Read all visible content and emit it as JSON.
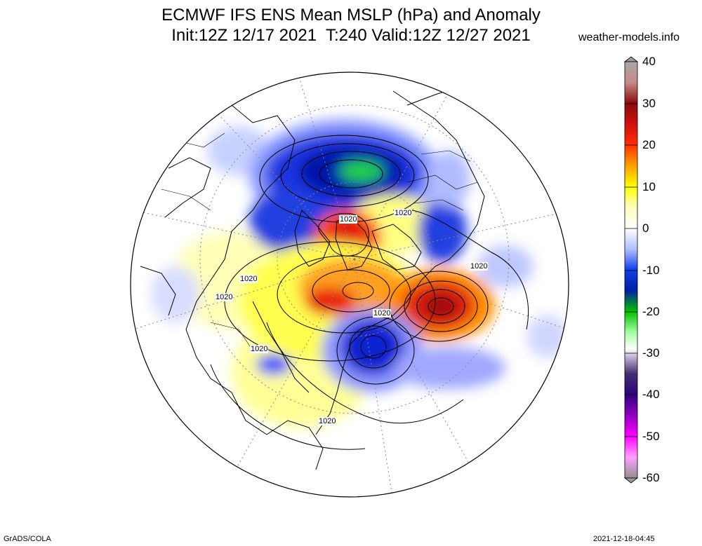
{
  "title": {
    "line1": "ECMWF IFS ENS Mean MSLP (hPa) and Anomaly",
    "line2": "Init:12Z 12/17 2021  T:240 Valid:12Z 12/27 2021"
  },
  "source": "weather-models.info",
  "colorbar": {
    "ticks": [
      "40",
      "30",
      "20",
      "10",
      "0",
      "-10",
      "-20",
      "-30",
      "-40",
      "-50",
      "-60"
    ],
    "end_color": "#9a9a9a",
    "stops": [
      {
        "value": 40,
        "color": "#a8a8a8"
      },
      {
        "value": 35,
        "color": "#c48a8a"
      },
      {
        "value": 30,
        "color": "#8c0a0a"
      },
      {
        "value": 25,
        "color": "#d01010"
      },
      {
        "value": 20,
        "color": "#ff3000"
      },
      {
        "value": 15,
        "color": "#ffa000"
      },
      {
        "value": 10,
        "color": "#ffff00"
      },
      {
        "value": 5,
        "color": "#fffcc0"
      },
      {
        "value": 0,
        "color": "#ffffff"
      },
      {
        "value": -5,
        "color": "#b0c0ff"
      },
      {
        "value": -10,
        "color": "#1040e8"
      },
      {
        "value": -15,
        "color": "#0020a0"
      },
      {
        "value": -20,
        "color": "#00c000"
      },
      {
        "value": -25,
        "color": "#a0ffa0"
      },
      {
        "value": -29,
        "color": "#ffffff"
      },
      {
        "value": -31,
        "color": "#c0b0d0"
      },
      {
        "value": -35,
        "color": "#403070"
      },
      {
        "value": -40,
        "color": "#300080"
      },
      {
        "value": -45,
        "color": "#9000c0"
      },
      {
        "value": -50,
        "color": "#ff00ff"
      },
      {
        "value": -55,
        "color": "#ffa0ff"
      },
      {
        "value": -60,
        "color": "#909090"
      }
    ]
  },
  "map": {
    "contour_labels": [
      "1020",
      "1020",
      "1020",
      "1020",
      "1020",
      "1020",
      "1020",
      "1020"
    ]
  },
  "footer": {
    "left": "GrADS/COLA",
    "right": "2021-12-18-04:45"
  }
}
